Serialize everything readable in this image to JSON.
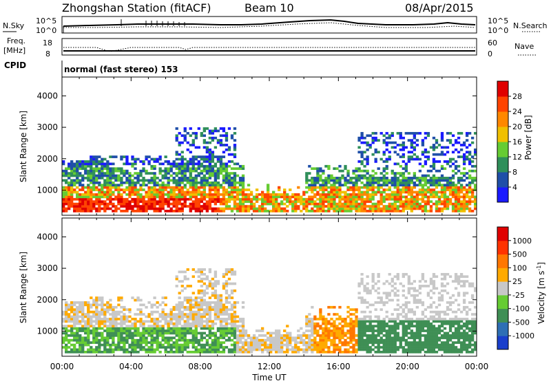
{
  "header": {
    "station": "Zhongshan Station (fitACF)",
    "beam": "Beam 10",
    "date": "08/Apr/2015",
    "cpid_label": "CPID",
    "cpid_text": "normal (fast stereo) 153"
  },
  "top_panels": {
    "noise": {
      "left_label": "N.Sky",
      "right_label": "N.Search",
      "left_ticks": [
        "10^5",
        "10^0"
      ],
      "right_ticks": [
        "10^5",
        "10^0"
      ]
    },
    "freq": {
      "left_label_line1": "Freq.",
      "left_label_line2": "[MHz]",
      "right_label": "Nave",
      "left_ticks": [
        "18",
        "8"
      ],
      "right_ticks": [
        "60",
        "0"
      ]
    }
  },
  "chart_data": [
    {
      "type": "heatmap",
      "name": "power",
      "ylabel": "Slant Range [km]",
      "ylim": [
        200,
        4600
      ],
      "yticks": [
        1000,
        2000,
        3000,
        4000
      ],
      "xlim": [
        0,
        24
      ],
      "colorbar": {
        "label": "Power [dB]",
        "ticks": [
          "4",
          "8",
          "12",
          "16",
          "20",
          "24",
          "28"
        ],
        "colors": [
          "#1a1aff",
          "#1f4fa8",
          "#2f8f5a",
          "#66cc33",
          "#f0c000",
          "#ff8800",
          "#ff4400",
          "#e00000"
        ]
      }
    },
    {
      "type": "heatmap",
      "name": "velocity",
      "ylabel": "Slant Range [km]",
      "ylim": [
        200,
        4600
      ],
      "yticks": [
        1000,
        2000,
        3000,
        4000
      ],
      "xlim": [
        0,
        24
      ],
      "xlabel": "Time UT",
      "xticks": [
        "00:00",
        "04:00",
        "08:00",
        "12:00",
        "16:00",
        "20:00",
        "00:00"
      ],
      "colorbar": {
        "label": "Velocity [m s",
        "label_sup": "-1",
        "label_end": "]",
        "ticks": [
          "1000",
          "500",
          "100",
          "25",
          "-25",
          "-100",
          "-500",
          "-1000"
        ],
        "colors": [
          "#1a3fcc",
          "#2e6fb5",
          "#3f8f55",
          "#66cc33",
          "#c8c8c8",
          "#ffaa00",
          "#ff7700",
          "#ff3300",
          "#e00000"
        ]
      }
    }
  ]
}
